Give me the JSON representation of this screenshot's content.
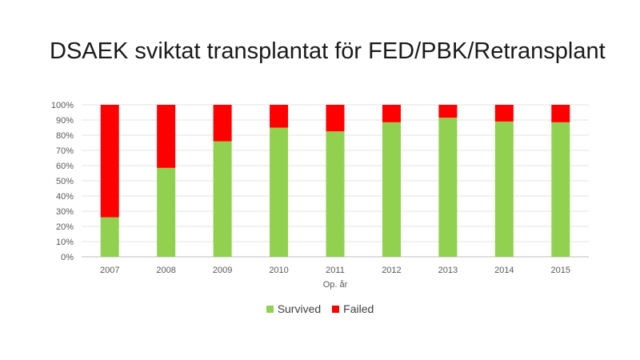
{
  "title": "DSAEK sviktat transplantat för FED/PBK/Retransplant",
  "chart_data": {
    "type": "bar",
    "stacked": true,
    "categories": [
      "2007",
      "2008",
      "2009",
      "2010",
      "2011",
      "2012",
      "2013",
      "2014",
      "2015"
    ],
    "series": [
      {
        "name": "Survived",
        "color": "#92d050",
        "values": [
          26,
          58.5,
          76,
          85,
          82.5,
          88.5,
          91.5,
          89,
          88.5
        ]
      },
      {
        "name": "Failed",
        "color": "#ff0000",
        "values": [
          74,
          41.5,
          24,
          15,
          17.5,
          11.5,
          8.5,
          11,
          11.5
        ]
      }
    ],
    "xlabel": "Op. år",
    "ylabel": "",
    "ylim": [
      0,
      100
    ],
    "yticks": [
      "0%",
      "10%",
      "20%",
      "30%",
      "40%",
      "50%",
      "60%",
      "70%",
      "80%",
      "90%",
      "100%"
    ],
    "grid": true,
    "legend_position": "bottom"
  }
}
